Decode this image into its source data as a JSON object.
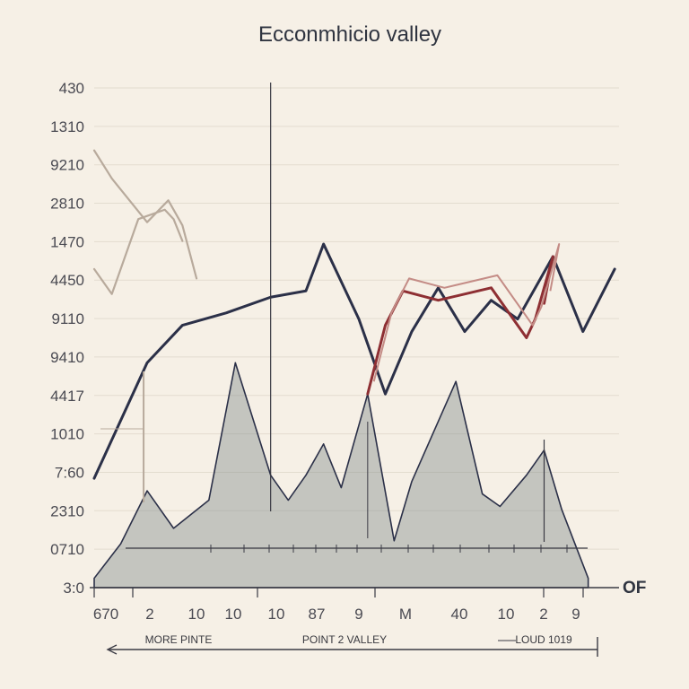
{
  "chart_data": {
    "type": "line",
    "title": "Ecconmhicio valley",
    "y_tick_labels": [
      "430",
      "1310",
      "9210",
      "2810",
      "1470",
      "4450",
      "9110",
      "9410",
      "4417",
      "1010",
      "7:60",
      "2310",
      "0710",
      "3:0"
    ],
    "x_tick_labels": [
      "670",
      "2",
      "10",
      "10",
      "10",
      "87",
      "9",
      "M",
      "40",
      "10",
      "2",
      "9"
    ],
    "x_end_label": "OF",
    "annotations": [
      "MORE PINTE",
      "POINT 2 VALLEY",
      "LOUD 1019"
    ],
    "grid": true,
    "colors": {
      "navy_line": "#2b3048",
      "tan_line": "#b8aa9c",
      "red_line": "#8e2f33",
      "pink_line": "#c48c86",
      "area_fill": "#7f8a8a",
      "axis": "#3a3a44"
    },
    "series": [
      {
        "values": [
          [
            0,
            1.75
          ],
          [
            3,
            3.6
          ],
          [
            5,
            4.2
          ],
          [
            7.5,
            4.4
          ],
          [
            10,
            4.65
          ],
          [
            12,
            4.75
          ],
          [
            13,
            5.5
          ],
          [
            15,
            4.3
          ],
          [
            16.5,
            3.1
          ],
          [
            18,
            4.1
          ],
          [
            19.5,
            4.8
          ],
          [
            21,
            4.1
          ],
          [
            22.5,
            4.6
          ],
          [
            24,
            4.3
          ],
          [
            26,
            5.3
          ],
          [
            27.7,
            4.1
          ],
          [
            29.5,
            5.1
          ]
        ]
      },
      {
        "values": [
          [
            0,
            7.0
          ],
          [
            1,
            6.55
          ],
          [
            3,
            5.85
          ],
          [
            4.2,
            6.2
          ],
          [
            5,
            5.8
          ],
          [
            5.8,
            4.95
          ]
        ]
      },
      {
        "values": [
          [
            0,
            5.1
          ],
          [
            1,
            4.7
          ],
          [
            2.5,
            5.9
          ],
          [
            4,
            6.05
          ],
          [
            4.5,
            5.9
          ],
          [
            5,
            5.55
          ]
        ]
      },
      {
        "values": [
          [
            15.5,
            3.1
          ],
          [
            16.5,
            4.2
          ],
          [
            17.5,
            4.75
          ],
          [
            19.5,
            4.6
          ],
          [
            22.5,
            4.8
          ],
          [
            24.5,
            4.0
          ],
          [
            25,
            4.3
          ],
          [
            26,
            5.3
          ],
          [
            25.5,
            4.55
          ]
        ]
      },
      {
        "values": [
          [
            0,
            0.15
          ],
          [
            1.5,
            0.7
          ],
          [
            3,
            1.55
          ],
          [
            4.5,
            0.95
          ],
          [
            6.5,
            1.4
          ],
          [
            8,
            3.6
          ],
          [
            10,
            1.8
          ],
          [
            11,
            1.4
          ],
          [
            12,
            1.8
          ],
          [
            13,
            2.3
          ],
          [
            14,
            1.6
          ],
          [
            15.5,
            3.1
          ],
          [
            17,
            0.75
          ],
          [
            18,
            1.7
          ],
          [
            20.5,
            3.3
          ],
          [
            22,
            1.5
          ],
          [
            23,
            1.3
          ],
          [
            24.5,
            1.8
          ],
          [
            25.5,
            2.2
          ],
          [
            26.5,
            1.25
          ],
          [
            28,
            0.15
          ]
        ]
      }
    ]
  }
}
